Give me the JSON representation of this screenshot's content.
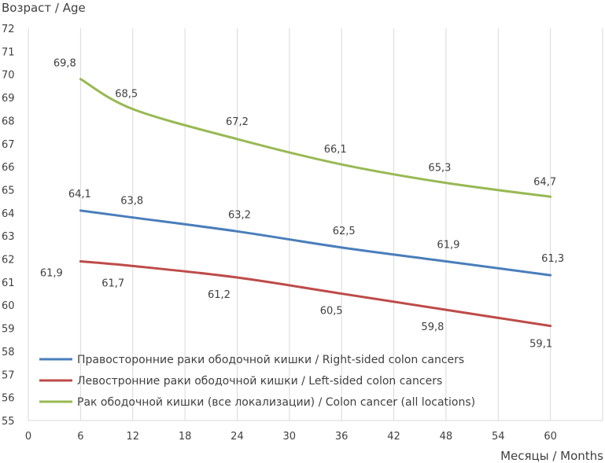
{
  "chart_data": {
    "type": "line",
    "title": "",
    "ylabel": "Возраст / Age",
    "xlabel": "Месяцы / Months",
    "x": [
      6,
      12,
      24,
      36,
      48,
      60
    ],
    "xlim": [
      0,
      66
    ],
    "xticks": [
      0,
      6,
      12,
      18,
      24,
      30,
      36,
      42,
      48,
      54,
      60
    ],
    "ylim": [
      55,
      72
    ],
    "yticks": [
      55,
      56,
      57,
      58,
      59,
      60,
      61,
      62,
      63,
      64,
      65,
      66,
      67,
      68,
      69,
      70,
      71,
      72
    ],
    "grid": "vertical",
    "legend_position": "bottom-left",
    "series": [
      {
        "name": "Правосторонние раки ободочной кишки / Right-sided colon cancers",
        "color": "#4a7ebb",
        "values": [
          64.1,
          63.8,
          63.2,
          62.5,
          61.9,
          61.3
        ],
        "labels": [
          "64,1",
          "63,8",
          "63,2",
          "62,5",
          "61,9",
          "61,3"
        ]
      },
      {
        "name": "Левостронние раки ободочной кишки / Left-sided colon cancers",
        "color": "#be4b48",
        "values": [
          61.9,
          61.7,
          61.2,
          60.5,
          59.8,
          59.1
        ],
        "labels": [
          "61,9",
          "61,7",
          "61,2",
          "60,5",
          "59,8",
          "59,1"
        ]
      },
      {
        "name": "Рак ободочной кишки (все локализации) / Colon cancer (all locations)",
        "color": "#98b954",
        "values": [
          69.8,
          68.5,
          67.2,
          66.1,
          65.3,
          64.7
        ],
        "labels": [
          "69,8",
          "68,5",
          "67,2",
          "66,1",
          "65,3",
          "64,7"
        ]
      }
    ]
  }
}
